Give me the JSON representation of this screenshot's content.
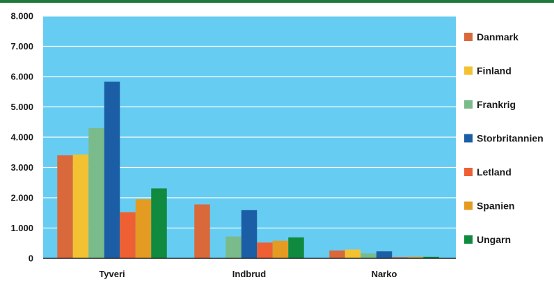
{
  "colors": {
    "top_rule": "#1f7a3a",
    "plot_background": "#66ccf2",
    "gridline": "#ffffff",
    "axis": "#222222"
  },
  "chart_data": {
    "type": "bar",
    "title": "",
    "xlabel": "",
    "ylabel": "",
    "ylim": [
      0,
      8000
    ],
    "y_ticks": [
      0,
      1000,
      2000,
      3000,
      4000,
      5000,
      6000,
      7000,
      8000
    ],
    "y_tick_labels": [
      "0",
      "1.000",
      "2.000",
      "3.000",
      "4.000",
      "5.000",
      "6.000",
      "7.000",
      "8.000"
    ],
    "grid": true,
    "legend_position": "right",
    "categories": [
      "Tyveri",
      "Indbrud",
      "Narko"
    ],
    "series": [
      {
        "name": "Danmark",
        "color": "#d9693a",
        "values": [
          3400,
          1780,
          260
        ]
      },
      {
        "name": "Finland",
        "color": "#f2c232",
        "values": [
          3430,
          null,
          290
        ]
      },
      {
        "name": "Frankrig",
        "color": "#79bb8b",
        "values": [
          4300,
          720,
          160
        ]
      },
      {
        "name": "Storbritannien",
        "color": "#1c5ea6",
        "values": [
          5830,
          1590,
          230
        ]
      },
      {
        "name": "Letland",
        "color": "#ee6034",
        "values": [
          1520,
          520,
          40
        ]
      },
      {
        "name": "Spanien",
        "color": "#e49b22",
        "values": [
          1950,
          580,
          50
        ]
      },
      {
        "name": "Ungarn",
        "color": "#0f8a3f",
        "values": [
          2310,
          690,
          50
        ]
      }
    ]
  }
}
